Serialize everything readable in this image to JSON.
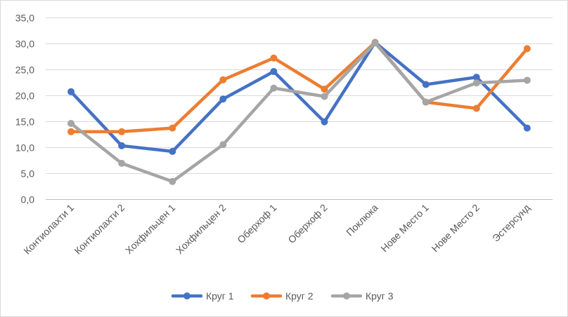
{
  "chart_data": {
    "type": "line",
    "title": "",
    "xlabel": "",
    "ylabel": "",
    "categories": [
      "Контиолахти 1",
      "Контиолахти 2",
      "Хохфильцен 1",
      "Хохфильцен 2",
      "Оберхоф 1",
      "Оберхоф 2",
      "Поклюка",
      "Нове Место 1",
      "Нове Место 2",
      "Эстерсунд"
    ],
    "ylim": [
      0,
      35
    ],
    "yticks": [
      "0,0",
      "5,0",
      "10,0",
      "15,0",
      "20,0",
      "25,0",
      "30,0",
      "35,0"
    ],
    "grid": "horizontal",
    "legend_position": "bottom",
    "series": [
      {
        "name": "Круг 1",
        "color": "#4472C4",
        "values": [
          20.7,
          10.3,
          9.2,
          19.3,
          24.6,
          14.9,
          30.2,
          22.1,
          23.5,
          13.7
        ]
      },
      {
        "name": "Круг 2",
        "color": "#ED7D31",
        "values": [
          13.0,
          13.0,
          13.7,
          23.0,
          27.2,
          21.2,
          30.2,
          18.7,
          17.5,
          29.0
        ]
      },
      {
        "name": "Круг 3",
        "color": "#A5A5A5",
        "values": [
          14.6,
          6.9,
          3.4,
          10.5,
          21.4,
          19.8,
          30.1,
          18.7,
          22.4,
          22.9
        ]
      }
    ]
  }
}
